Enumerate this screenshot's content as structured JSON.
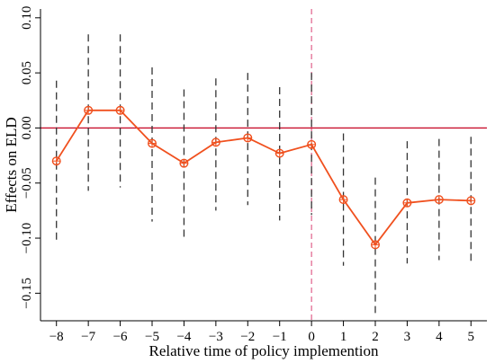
{
  "chart_data": {
    "type": "line",
    "title": "",
    "xlabel": "Relative time of policy implemention",
    "ylabel": "Effects on ELD",
    "x": [
      -8,
      -7,
      -6,
      -5,
      -4,
      -3,
      -2,
      -1,
      0,
      1,
      2,
      3,
      4,
      5
    ],
    "x_ticks": [
      "−8",
      "−7",
      "−6",
      "−5",
      "−4",
      "−3",
      "−2",
      "−1",
      "0",
      "1",
      "2",
      "3",
      "4",
      "5"
    ],
    "y_ticks": [
      {
        "value": 0.1,
        "label": "0.10"
      },
      {
        "value": 0.05,
        "label": "0.05"
      },
      {
        "value": 0.0,
        "label": "0.00"
      },
      {
        "value": -0.05,
        "label": "−0.05"
      },
      {
        "value": -0.1,
        "label": "−0.10"
      },
      {
        "value": -0.15,
        "label": "−0.15"
      }
    ],
    "xlim": [
      -8.5,
      5.5
    ],
    "ylim": [
      -0.175,
      0.108
    ],
    "series": [
      {
        "values": [
          -0.03,
          0.016,
          0.016,
          -0.014,
          -0.032,
          -0.013,
          -0.009,
          -0.023,
          -0.015,
          -0.065,
          -0.106,
          -0.068,
          -0.065,
          -0.066
        ],
        "ci_lower": [
          -0.103,
          -0.057,
          -0.054,
          -0.085,
          -0.099,
          -0.075,
          -0.07,
          -0.084,
          -0.079,
          -0.125,
          -0.168,
          -0.123,
          -0.12,
          -0.122
        ],
        "ci_upper": [
          0.043,
          0.085,
          0.085,
          0.055,
          0.035,
          0.045,
          0.05,
          0.037,
          0.05,
          -0.005,
          -0.045,
          -0.012,
          -0.01,
          -0.008
        ]
      }
    ],
    "reference_lines": {
      "horizontal_y": 0,
      "vertical_x": 0
    },
    "colors": {
      "series": "#f0501e",
      "ci": "#333333",
      "hline": "#c8102e",
      "vline": "#e0608a",
      "axis": "#000000"
    },
    "grid": false,
    "legend": "none"
  }
}
